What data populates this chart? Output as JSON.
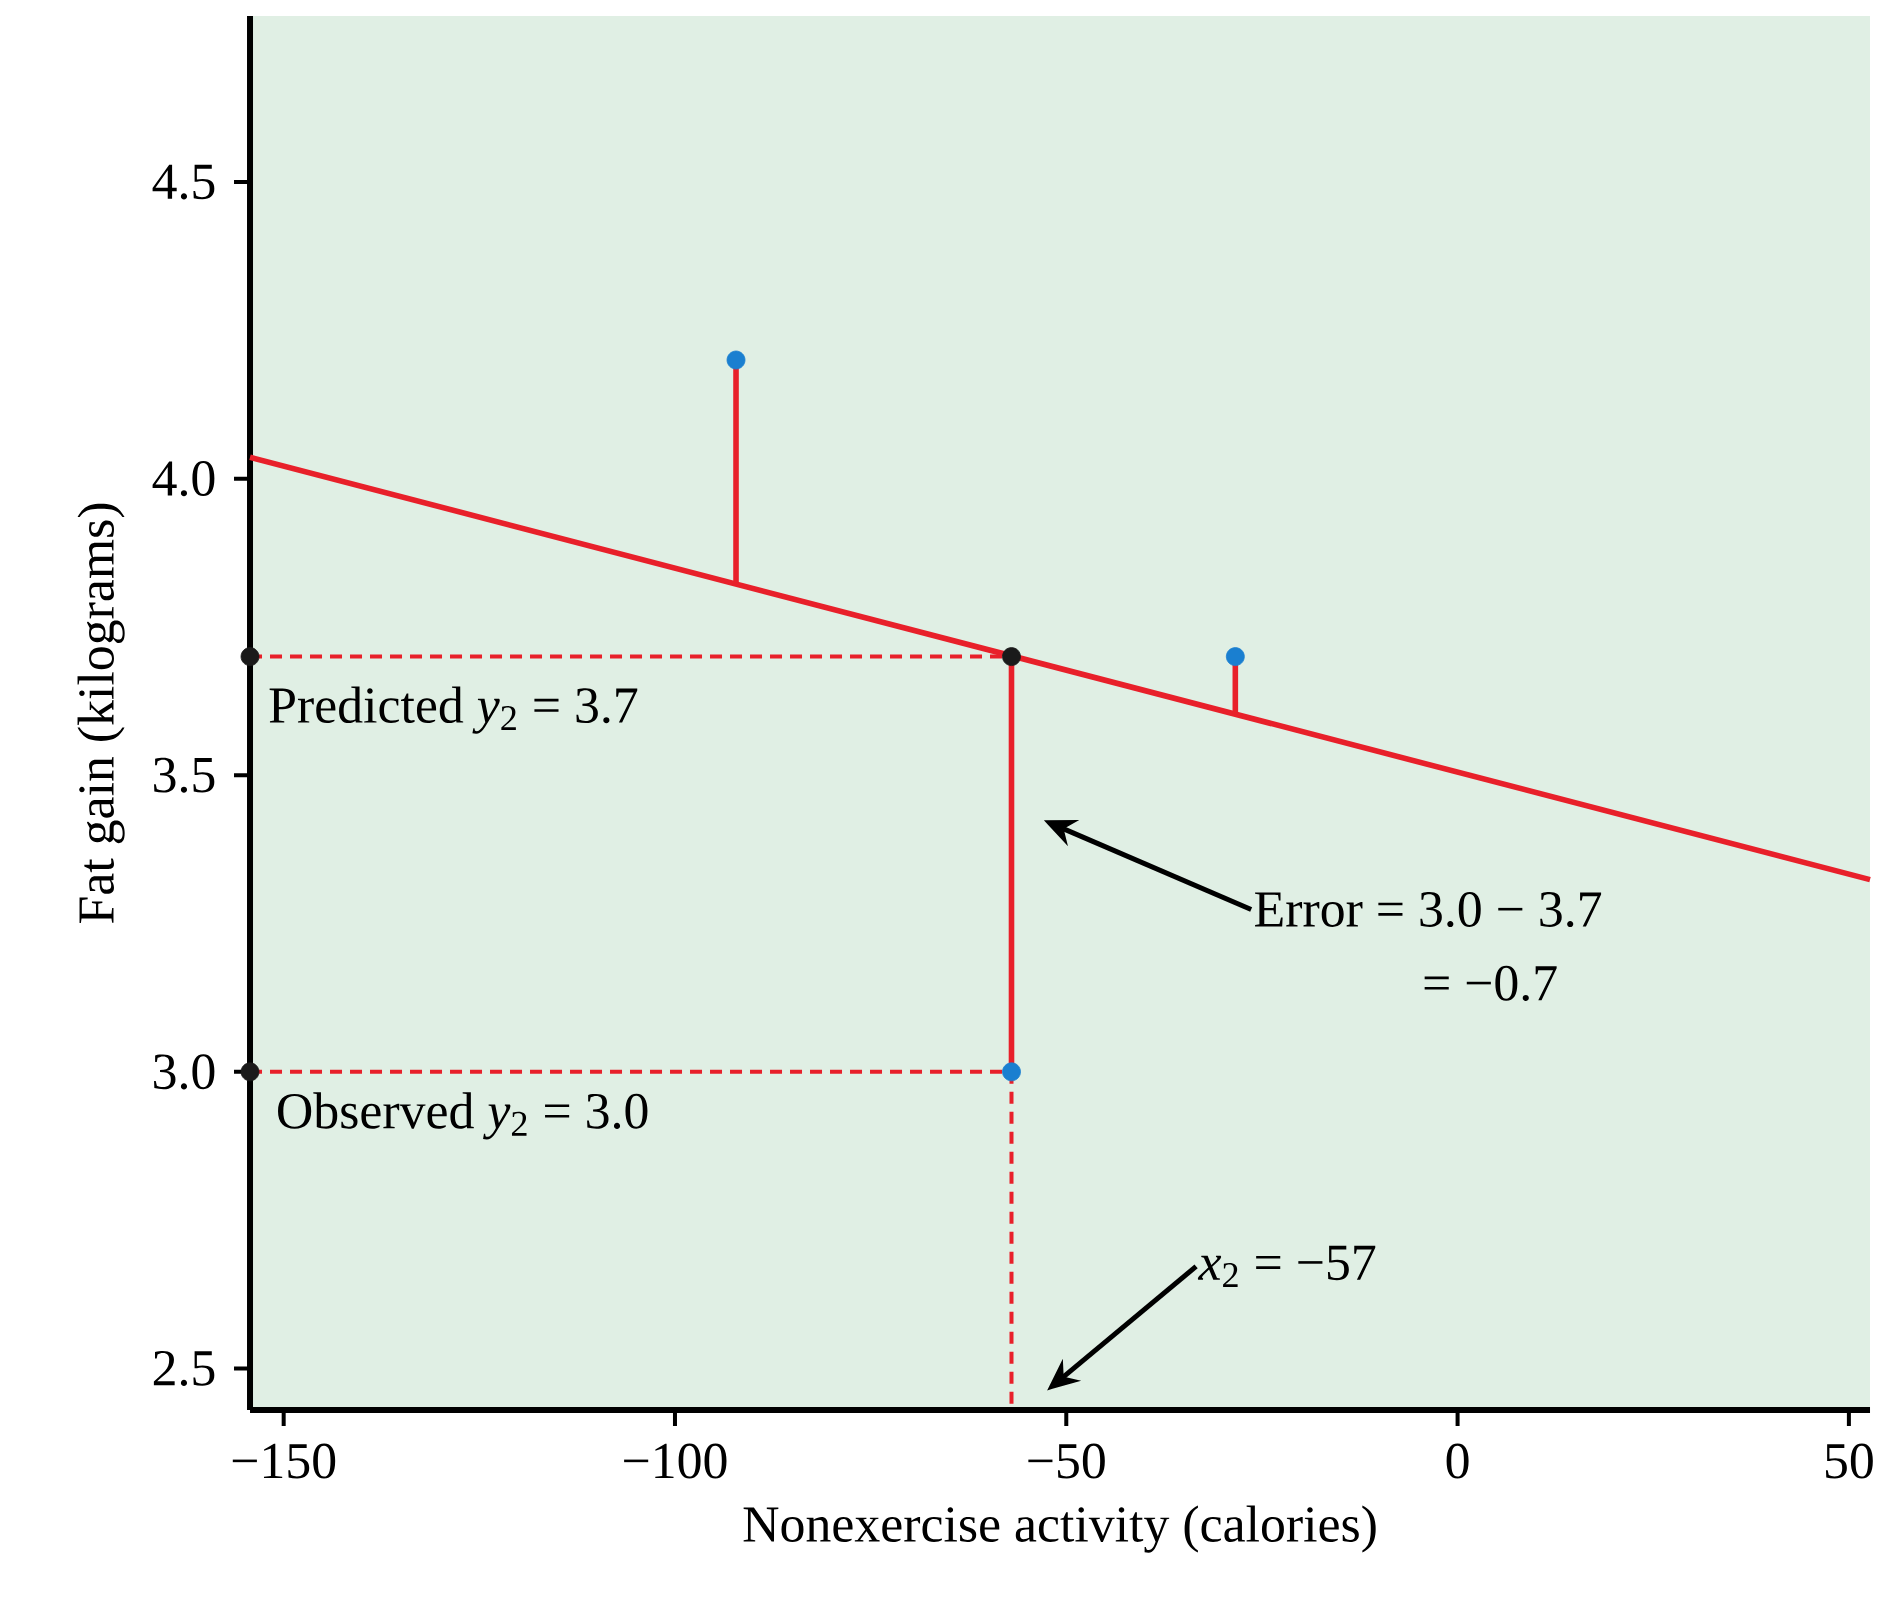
{
  "chart_data": {
    "type": "scatter",
    "xlabel": "Nonexercise activity (calories)",
    "ylabel": "Fat gain (kilograms)",
    "xlim": [
      -154.3,
      52.7
    ],
    "ylim": [
      2.43,
      4.78
    ],
    "xticks": [
      {
        "value": -150,
        "label": "−150"
      },
      {
        "value": -100,
        "label": "−100"
      },
      {
        "value": -50,
        "label": "−50"
      },
      0,
      50
    ],
    "yticks": [
      {
        "value": 2.5,
        "label": "2.5"
      },
      {
        "value": 3.0,
        "label": "3.0"
      },
      {
        "value": 3.5,
        "label": "3.5"
      },
      {
        "value": 4.0,
        "label": "4.0"
      },
      {
        "value": 4.5,
        "label": "4.5"
      }
    ],
    "series": [
      {
        "type": "line",
        "color": "#e8202a",
        "line_style": "solid",
        "x": [
          -154.3,
          52.7
        ],
        "values": [
          4.036,
          3.324
        ]
      },
      {
        "type": "line",
        "color": "#e8202a",
        "line_style": "solid",
        "x": [
          -92.2,
          -92.2
        ],
        "values": [
          3.822,
          4.2
        ]
      },
      {
        "type": "line",
        "color": "#e8202a",
        "line_style": "solid",
        "x": [
          -28.4,
          -28.4
        ],
        "values": [
          3.603,
          3.7
        ]
      },
      {
        "type": "line",
        "color": "#e8202a",
        "line_style": "solid",
        "x": [
          -57,
          -57
        ],
        "values": [
          3.0,
          3.7
        ]
      },
      {
        "type": "line",
        "color": "#e8202a",
        "line_style": "dashed",
        "x": [
          -154.3,
          -57
        ],
        "values": [
          3.7,
          3.7
        ]
      },
      {
        "type": "line",
        "color": "#e8202a",
        "line_style": "dashed",
        "x": [
          -154.3,
          -57
        ],
        "values": [
          3.0,
          3.0
        ]
      },
      {
        "type": "line",
        "color": "#e8202a",
        "line_style": "dashed",
        "x": [
          -57,
          -57
        ],
        "values": [
          3.0,
          2.43
        ]
      },
      {
        "color": "#1a7fd0",
        "marker": "circle",
        "x": [
          -92.2,
          -28.4,
          -57
        ],
        "values": [
          4.2,
          3.7,
          3.0
        ]
      },
      {
        "color": "#1a1a1a",
        "marker": "circle",
        "x": [
          -154.3,
          -154.3,
          -57
        ],
        "values": [
          3.7,
          3.0,
          3.7
        ]
      }
    ],
    "annotations": [
      "Predicted *y*$_{2}$ = 3.7",
      "Observed *y*$_{2}$ = 3.0",
      "Error = 3.0 − 3.7",
      "= −0.7",
      "*x*$_{2}$ = −57"
    ]
  }
}
